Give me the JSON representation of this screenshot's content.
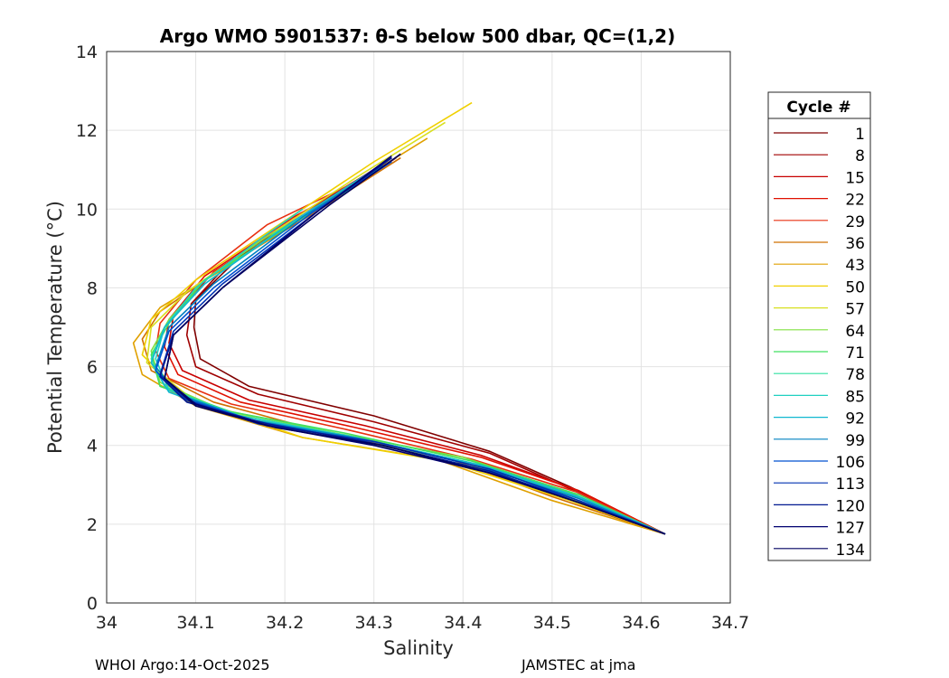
{
  "chart_data": {
    "type": "line",
    "title": "Argo WMO 5901537: θ-S below 500 dbar,  QC=(1,2)",
    "xlabel": "Salinity",
    "ylabel": "Potential Temperature (°C)",
    "xlim": [
      34.0,
      34.7
    ],
    "ylim": [
      0,
      14
    ],
    "xticks": [
      "34",
      "34.1",
      "34.2",
      "34.3",
      "34.4",
      "34.5",
      "34.6",
      "34.7"
    ],
    "yticks": [
      "0",
      "2",
      "4",
      "6",
      "8",
      "10",
      "12",
      "14"
    ],
    "grid": true,
    "legend": {
      "title": "Cycle #",
      "placement": "right",
      "entries": [
        {
          "label": "1",
          "color": "#800000"
        },
        {
          "label": "8",
          "color": "#a00000"
        },
        {
          "label": "15",
          "color": "#c80000"
        },
        {
          "label": "22",
          "color": "#e01000"
        },
        {
          "label": "29",
          "color": "#e83010"
        },
        {
          "label": "36",
          "color": "#d07000"
        },
        {
          "label": "43",
          "color": "#e0a000"
        },
        {
          "label": "50",
          "color": "#f0d000"
        },
        {
          "label": "57",
          "color": "#d8e020"
        },
        {
          "label": "64",
          "color": "#80e040"
        },
        {
          "label": "71",
          "color": "#40e060"
        },
        {
          "label": "78",
          "color": "#30e0a0"
        },
        {
          "label": "85",
          "color": "#20d0c0"
        },
        {
          "label": "92",
          "color": "#10b8d0"
        },
        {
          "label": "99",
          "color": "#0080c0"
        },
        {
          "label": "106",
          "color": "#0050d0"
        },
        {
          "label": "113",
          "color": "#0030b0"
        },
        {
          "label": "120",
          "color": "#001890"
        },
        {
          "label": "127",
          "color": "#000070"
        },
        {
          "label": "134",
          "color": "#000060"
        }
      ]
    },
    "series": [
      {
        "name": "1",
        "color": "#800000",
        "points": [
          [
            34.325,
            11.3
          ],
          [
            34.25,
            10.2
          ],
          [
            34.15,
            8.8
          ],
          [
            34.1,
            7.7
          ],
          [
            34.098,
            7.0
          ],
          [
            34.105,
            6.2
          ],
          [
            34.16,
            5.5
          ],
          [
            34.3,
            4.75
          ],
          [
            34.43,
            3.85
          ],
          [
            34.52,
            2.95
          ],
          [
            34.627,
            1.75
          ]
        ]
      },
      {
        "name": "8",
        "color": "#a00000",
        "points": [
          [
            34.32,
            11.3
          ],
          [
            34.245,
            10.2
          ],
          [
            34.14,
            8.7
          ],
          [
            34.095,
            7.6
          ],
          [
            34.09,
            6.8
          ],
          [
            34.1,
            6.0
          ],
          [
            34.17,
            5.3
          ],
          [
            34.3,
            4.6
          ],
          [
            34.43,
            3.8
          ],
          [
            34.52,
            2.9
          ],
          [
            34.627,
            1.75
          ]
        ]
      },
      {
        "name": "15",
        "color": "#c80000",
        "points": [
          [
            34.3,
            11.0
          ],
          [
            34.22,
            9.9
          ],
          [
            34.12,
            8.4
          ],
          [
            34.075,
            7.3
          ],
          [
            34.07,
            6.6
          ],
          [
            34.085,
            5.9
          ],
          [
            34.16,
            5.15
          ],
          [
            34.29,
            4.5
          ],
          [
            34.42,
            3.75
          ],
          [
            34.53,
            2.85
          ],
          [
            34.627,
            1.75
          ]
        ]
      },
      {
        "name": "22",
        "color": "#e01000",
        "points": [
          [
            34.3,
            10.9
          ],
          [
            34.21,
            9.8
          ],
          [
            34.11,
            8.3
          ],
          [
            34.07,
            7.2
          ],
          [
            34.065,
            6.5
          ],
          [
            34.08,
            5.8
          ],
          [
            34.15,
            5.1
          ],
          [
            34.28,
            4.45
          ],
          [
            34.42,
            3.7
          ],
          [
            34.53,
            2.85
          ],
          [
            34.627,
            1.75
          ]
        ]
      },
      {
        "name": "29",
        "color": "#e83010",
        "points": [
          [
            34.29,
            10.8
          ],
          [
            34.18,
            9.6
          ],
          [
            34.1,
            8.2
          ],
          [
            34.06,
            7.1
          ],
          [
            34.055,
            6.4
          ],
          [
            34.07,
            5.7
          ],
          [
            34.14,
            5.05
          ],
          [
            34.27,
            4.4
          ],
          [
            34.41,
            3.65
          ],
          [
            34.53,
            2.8
          ],
          [
            34.627,
            1.75
          ]
        ]
      },
      {
        "name": "36",
        "color": "#d07000",
        "points": [
          [
            34.33,
            11.3
          ],
          [
            34.24,
            10.0
          ],
          [
            34.13,
            8.5
          ],
          [
            34.06,
            7.4
          ],
          [
            34.04,
            6.7
          ],
          [
            34.05,
            5.9
          ],
          [
            34.12,
            5.1
          ],
          [
            34.25,
            4.3
          ],
          [
            34.38,
            3.7
          ],
          [
            34.5,
            2.7
          ],
          [
            34.627,
            1.75
          ]
        ]
      },
      {
        "name": "43",
        "color": "#e0a000",
        "points": [
          [
            34.36,
            11.8
          ],
          [
            34.26,
            10.4
          ],
          [
            34.14,
            8.6
          ],
          [
            34.06,
            7.5
          ],
          [
            34.03,
            6.6
          ],
          [
            34.04,
            5.8
          ],
          [
            34.1,
            5.0
          ],
          [
            34.22,
            4.2
          ],
          [
            34.37,
            3.65
          ],
          [
            34.5,
            2.6
          ],
          [
            34.627,
            1.75
          ]
        ]
      },
      {
        "name": "50",
        "color": "#f0d000",
        "points": [
          [
            34.41,
            12.7
          ],
          [
            34.3,
            11.2
          ],
          [
            34.18,
            9.4
          ],
          [
            34.1,
            8.2
          ],
          [
            34.05,
            7.2
          ],
          [
            34.04,
            6.3
          ],
          [
            34.09,
            5.2
          ],
          [
            34.22,
            4.2
          ],
          [
            34.38,
            3.6
          ],
          [
            34.52,
            2.6
          ],
          [
            34.627,
            1.75
          ]
        ]
      },
      {
        "name": "57",
        "color": "#d8e020",
        "points": [
          [
            34.38,
            12.2
          ],
          [
            34.28,
            10.8
          ],
          [
            34.16,
            9.0
          ],
          [
            34.09,
            7.9
          ],
          [
            34.05,
            7.0
          ],
          [
            34.045,
            6.1
          ],
          [
            34.1,
            5.1
          ],
          [
            34.23,
            4.3
          ],
          [
            34.39,
            3.65
          ],
          [
            34.52,
            2.65
          ],
          [
            34.627,
            1.75
          ]
        ]
      },
      {
        "name": "64",
        "color": "#80e040",
        "points": [
          [
            34.25,
            10.2
          ],
          [
            34.18,
            9.3
          ],
          [
            34.11,
            8.2
          ],
          [
            34.07,
            7.2
          ],
          [
            34.05,
            6.4
          ],
          [
            34.06,
            5.6
          ],
          [
            34.13,
            4.9
          ],
          [
            34.26,
            4.3
          ],
          [
            34.4,
            3.7
          ],
          [
            34.52,
            2.8
          ],
          [
            34.627,
            1.75
          ]
        ]
      },
      {
        "name": "71",
        "color": "#40e060",
        "points": [
          [
            34.28,
            10.6
          ],
          [
            34.2,
            9.5
          ],
          [
            34.11,
            8.2
          ],
          [
            34.07,
            7.1
          ],
          [
            34.05,
            6.3
          ],
          [
            34.06,
            5.5
          ],
          [
            34.14,
            4.85
          ],
          [
            34.27,
            4.3
          ],
          [
            34.41,
            3.6
          ],
          [
            34.53,
            2.75
          ],
          [
            34.627,
            1.75
          ]
        ]
      },
      {
        "name": "78",
        "color": "#30e0a0",
        "points": [
          [
            34.27,
            10.5
          ],
          [
            34.19,
            9.4
          ],
          [
            34.11,
            8.1
          ],
          [
            34.065,
            7.0
          ],
          [
            34.05,
            6.2
          ],
          [
            34.065,
            5.5
          ],
          [
            34.14,
            4.8
          ],
          [
            34.27,
            4.25
          ],
          [
            34.41,
            3.55
          ],
          [
            34.52,
            2.75
          ],
          [
            34.627,
            1.75
          ]
        ]
      },
      {
        "name": "85",
        "color": "#20d0c0",
        "points": [
          [
            34.22,
            10.0
          ],
          [
            34.17,
            9.2
          ],
          [
            34.1,
            8.0
          ],
          [
            34.065,
            7.0
          ],
          [
            34.055,
            6.2
          ],
          [
            34.07,
            5.4
          ],
          [
            34.15,
            4.75
          ],
          [
            34.28,
            4.2
          ],
          [
            34.42,
            3.5
          ],
          [
            34.53,
            2.7
          ],
          [
            34.627,
            1.75
          ]
        ]
      },
      {
        "name": "92",
        "color": "#10b8d0",
        "points": [
          [
            34.3,
            11.0
          ],
          [
            34.21,
            9.7
          ],
          [
            34.11,
            8.1
          ],
          [
            34.065,
            7.0
          ],
          [
            34.05,
            6.1
          ],
          [
            34.07,
            5.35
          ],
          [
            34.15,
            4.7
          ],
          [
            34.28,
            4.2
          ],
          [
            34.42,
            3.5
          ],
          [
            34.53,
            2.7
          ],
          [
            34.627,
            1.75
          ]
        ]
      },
      {
        "name": "99",
        "color": "#0080c0",
        "points": [
          [
            34.31,
            11.1
          ],
          [
            34.22,
            9.8
          ],
          [
            34.12,
            8.1
          ],
          [
            34.07,
            7.0
          ],
          [
            34.055,
            6.0
          ],
          [
            34.08,
            5.3
          ],
          [
            34.16,
            4.65
          ],
          [
            34.29,
            4.15
          ],
          [
            34.42,
            3.45
          ],
          [
            34.53,
            2.65
          ],
          [
            34.627,
            1.75
          ]
        ]
      },
      {
        "name": "106",
        "color": "#0050d0",
        "points": [
          [
            34.32,
            11.2
          ],
          [
            34.23,
            9.9
          ],
          [
            34.12,
            8.0
          ],
          [
            34.07,
            6.9
          ],
          [
            34.055,
            5.9
          ],
          [
            34.085,
            5.2
          ],
          [
            34.17,
            4.6
          ],
          [
            34.29,
            4.1
          ],
          [
            34.42,
            3.4
          ],
          [
            34.53,
            2.6
          ],
          [
            34.627,
            1.75
          ]
        ]
      },
      {
        "name": "113",
        "color": "#0030b0",
        "points": [
          [
            34.32,
            11.3
          ],
          [
            34.24,
            10.0
          ],
          [
            34.13,
            8.1
          ],
          [
            34.075,
            6.9
          ],
          [
            34.06,
            5.8
          ],
          [
            34.09,
            5.15
          ],
          [
            34.17,
            4.55
          ],
          [
            34.3,
            4.1
          ],
          [
            34.43,
            3.4
          ],
          [
            34.53,
            2.6
          ],
          [
            34.627,
            1.75
          ]
        ]
      },
      {
        "name": "120",
        "color": "#001890",
        "points": [
          [
            34.32,
            11.3
          ],
          [
            34.24,
            10.0
          ],
          [
            34.13,
            8.0
          ],
          [
            34.075,
            6.8
          ],
          [
            34.06,
            5.75
          ],
          [
            34.09,
            5.1
          ],
          [
            34.18,
            4.55
          ],
          [
            34.3,
            4.05
          ],
          [
            34.43,
            3.35
          ],
          [
            34.53,
            2.55
          ],
          [
            34.627,
            1.75
          ]
        ]
      },
      {
        "name": "127",
        "color": "#000070",
        "points": [
          [
            34.32,
            11.35
          ],
          [
            34.24,
            10.0
          ],
          [
            34.13,
            8.0
          ],
          [
            34.075,
            6.8
          ],
          [
            34.065,
            5.7
          ],
          [
            34.1,
            5.05
          ],
          [
            34.18,
            4.5
          ],
          [
            34.3,
            4.0
          ],
          [
            34.43,
            3.3
          ],
          [
            34.53,
            2.55
          ],
          [
            34.627,
            1.75
          ]
        ]
      },
      {
        "name": "134",
        "color": "#000060",
        "points": [
          [
            34.33,
            11.4
          ],
          [
            34.25,
            10.1
          ],
          [
            34.13,
            8.0
          ],
          [
            34.075,
            6.8
          ],
          [
            34.065,
            5.7
          ],
          [
            34.1,
            5.0
          ],
          [
            34.19,
            4.45
          ],
          [
            34.31,
            4.0
          ],
          [
            34.43,
            3.3
          ],
          [
            34.53,
            2.55
          ],
          [
            34.627,
            1.75
          ]
        ]
      }
    ]
  },
  "footer": {
    "left": "WHOI Argo:14-Oct-2025",
    "right": "JAMSTEC at jma"
  }
}
